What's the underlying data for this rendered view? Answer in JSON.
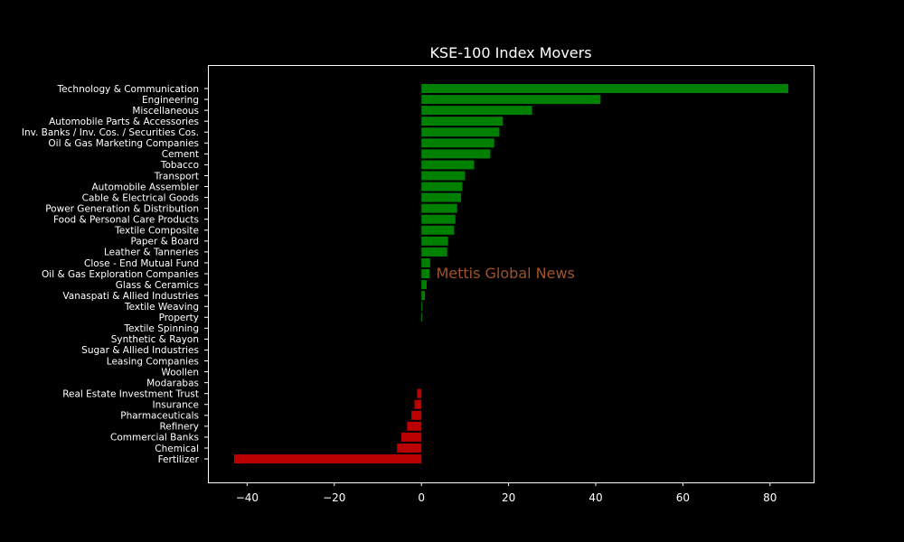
{
  "chart_data": {
    "type": "bar",
    "orientation": "horizontal",
    "title": "KSE-100 Index Movers",
    "xlabel": "",
    "ylabel": "",
    "xlim": [
      -49,
      90
    ],
    "xticks": [
      -40,
      -20,
      0,
      20,
      40,
      60,
      80
    ],
    "xtick_labels": [
      "−40",
      "−20",
      "0",
      "20",
      "40",
      "60",
      "80"
    ],
    "grid": false,
    "legend": "none",
    "colors": {
      "background": "#000000",
      "positive": "#008000",
      "negative": "#bb0000",
      "axes": "#ffffff",
      "text": "#ffffff"
    },
    "annotation": {
      "text": "Mettis Global News",
      "color": "#a0522d",
      "anchor": {
        "x": 4,
        "category": "Oil & Gas Exploration Companies"
      }
    },
    "categories": [
      "Technology & Communication",
      "Engineering",
      "Miscellaneous",
      "Automobile Parts & Accessories",
      "Inv. Banks / Inv. Cos. / Securities Cos.",
      "Oil & Gas Marketing Companies",
      "Cement",
      "Tobacco",
      "Transport",
      "Automobile Assembler",
      "Cable & Electrical Goods",
      "Power Generation & Distribution",
      "Food & Personal Care Products",
      "Textile Composite",
      "Paper & Board",
      "Leather & Tanneries",
      "Close - End Mutual Fund",
      "Oil & Gas Exploration Companies",
      "Glass & Ceramics",
      "Vanaspati & Allied Industries",
      "Textile Weaving",
      "Property",
      "Textile Spinning",
      "Synthetic & Rayon",
      "Sugar & Allied Industries",
      "Leasing Companies",
      "Woollen",
      "Modarabas",
      "Real Estate Investment Trust",
      "Insurance",
      "Pharmaceuticals",
      "Refinery",
      "Commercial Banks",
      "Chemical",
      "Fertilizer"
    ],
    "values": [
      84.2,
      41.1,
      25.4,
      18.7,
      17.9,
      16.7,
      15.8,
      12.1,
      10.0,
      9.4,
      9.1,
      8.2,
      7.8,
      7.5,
      6.1,
      5.9,
      2.0,
      1.9,
      1.2,
      0.8,
      0.2,
      0.2,
      0,
      0,
      0,
      0,
      0,
      0,
      -1.0,
      -1.6,
      -2.3,
      -3.3,
      -4.6,
      -5.6,
      -43.0
    ]
  }
}
